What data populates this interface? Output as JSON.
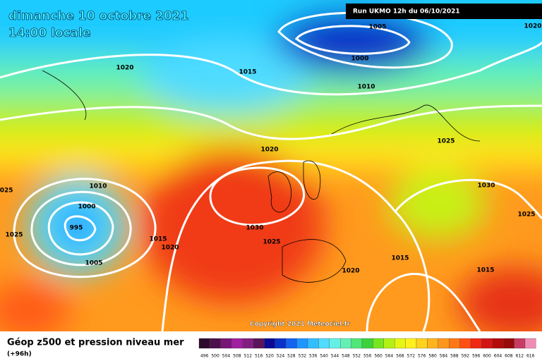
{
  "header": {
    "date": "dimanche 10 octobre 2021",
    "time": "14:00 locale",
    "run": "Run UKMO 12h du 06/10/2021"
  },
  "map": {
    "copyright": "Copyright 2021 Meteociel.fr",
    "isobar_labels": [
      1005,
      1020,
      1000,
      1020,
      1015,
      1010,
      1025,
      1020,
      1010,
      1030,
      1000,
      1025,
      995,
      1030,
      1025,
      1015,
      1025,
      1020,
      1015,
      1005,
      1020,
      1015,
      1025
    ]
  },
  "legend": {
    "title": "Géop z500 et pression niveau mer",
    "lead": "(+96h)",
    "scale": [
      496,
      500,
      504,
      508,
      512,
      516,
      520,
      524,
      528,
      532,
      536,
      540,
      544,
      548,
      552,
      556,
      560,
      564,
      568,
      572,
      576,
      580,
      584,
      588,
      592,
      596,
      600,
      604,
      608,
      612,
      616
    ],
    "colors": [
      "#2d0a2d",
      "#4b0f4b",
      "#781478",
      "#a01ea0",
      "#821e82",
      "#5a145a",
      "#0a0a96",
      "#0a32c8",
      "#1464f0",
      "#1e96ff",
      "#32beff",
      "#50dcff",
      "#64f0e6",
      "#64f0b4",
      "#50e678",
      "#3cd23c",
      "#78e61e",
      "#b4f014",
      "#e6f514",
      "#fff01e",
      "#ffd21e",
      "#ffb41e",
      "#ff961e",
      "#ff7814",
      "#ff5014",
      "#f02814",
      "#d21414",
      "#b40a0a",
      "#960a0a",
      "#c83c64",
      "#f08cb4"
    ]
  }
}
